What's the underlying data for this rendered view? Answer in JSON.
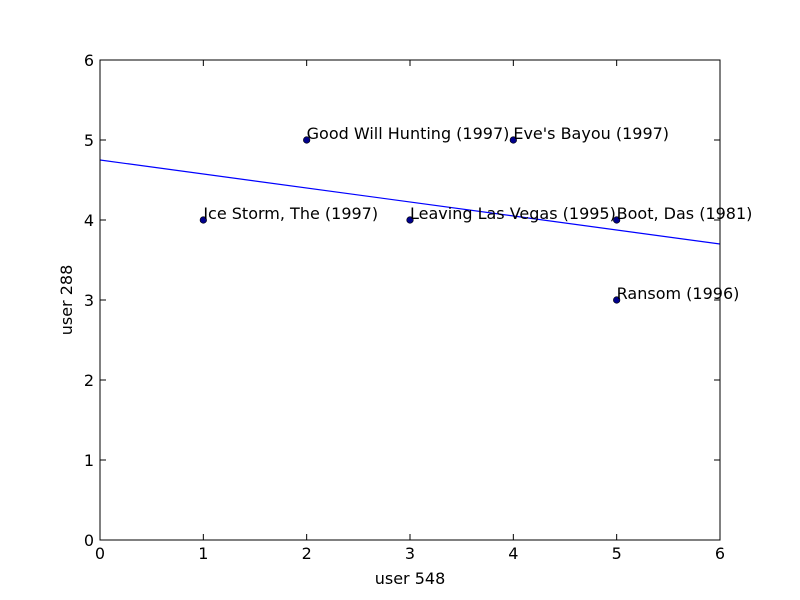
{
  "chart_data": {
    "type": "scatter",
    "title": "",
    "xlabel": "user 548",
    "ylabel": "user 288",
    "xlim": [
      0,
      6
    ],
    "ylim": [
      0,
      6
    ],
    "xticks": [
      "0",
      "1",
      "2",
      "3",
      "4",
      "5",
      "6"
    ],
    "yticks": [
      "0",
      "1",
      "2",
      "3",
      "4",
      "5",
      "6"
    ],
    "grid": false,
    "points": [
      {
        "x": 1,
        "y": 4,
        "label": "Ice Storm, The (1997)"
      },
      {
        "x": 2,
        "y": 5,
        "label": "Good Will Hunting (1997)"
      },
      {
        "x": 3,
        "y": 4,
        "label": "Leaving Las Vegas (1995)"
      },
      {
        "x": 4,
        "y": 5,
        "label": "Eve's Bayou (1997)"
      },
      {
        "x": 5,
        "y": 4,
        "label": "Boot, Das (1981)"
      },
      {
        "x": 5,
        "y": 3,
        "label": "Ransom (1996)"
      }
    ],
    "trend_line": {
      "x": [
        0,
        6
      ],
      "y": [
        4.75,
        3.7
      ]
    },
    "colors": {
      "points": "#00008b",
      "trend_line": "#0000ff",
      "axes": "#000000"
    }
  }
}
